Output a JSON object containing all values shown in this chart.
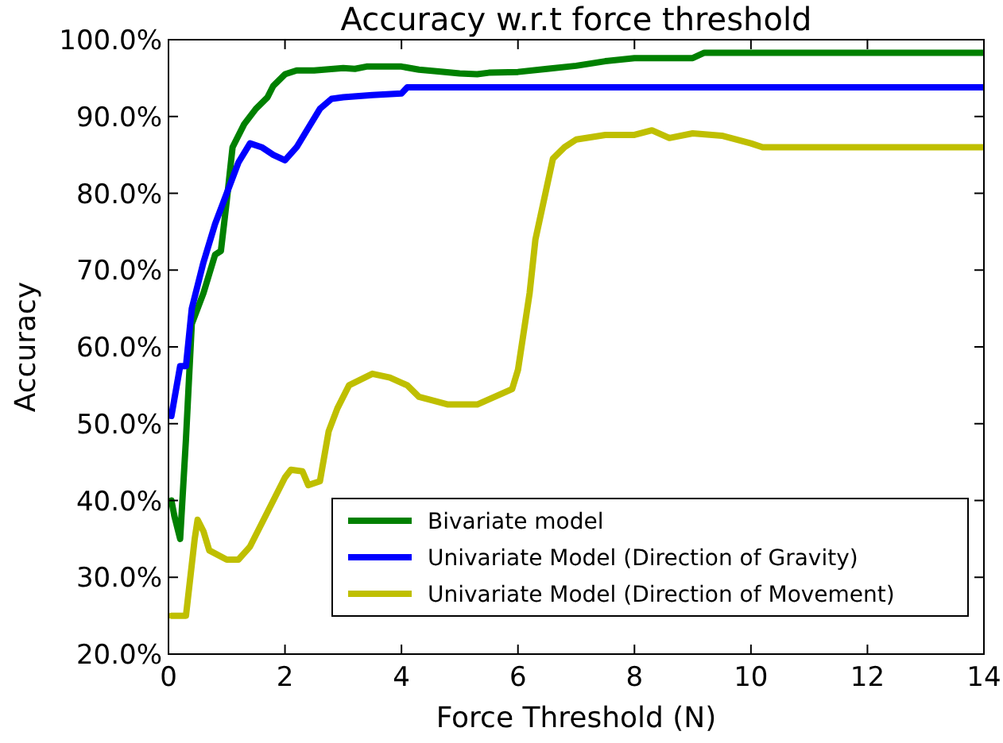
{
  "chart_data": {
    "type": "line",
    "title": "Accuracy w.r.t force threshold",
    "xlabel": "Force Threshold (N)",
    "ylabel": "Accuracy",
    "xlim": [
      0,
      14
    ],
    "xticks": [
      0,
      2,
      4,
      6,
      8,
      10,
      12,
      14
    ],
    "ylim": [
      20,
      100
    ],
    "yticks": [
      {
        "value": 20,
        "label": "20.0%"
      },
      {
        "value": 30,
        "label": "30.0%"
      },
      {
        "value": 40,
        "label": "40.0%"
      },
      {
        "value": 50,
        "label": "50.0%"
      },
      {
        "value": 60,
        "label": "60.0%"
      },
      {
        "value": 70,
        "label": "70.0%"
      },
      {
        "value": 80,
        "label": "80.0%"
      },
      {
        "value": 90,
        "label": "90.0%"
      },
      {
        "value": 100,
        "label": "100.0%"
      }
    ],
    "grid": false,
    "legend": "bottom right",
    "marker": "none",
    "line_style": "solid",
    "series": [
      {
        "name": "Bivariate model",
        "color": "#008000",
        "x": [
          0.05,
          0.1,
          0.2,
          0.3,
          0.4,
          0.6,
          0.8,
          0.9,
          1.0,
          1.1,
          1.3,
          1.5,
          1.7,
          1.8,
          2.0,
          2.2,
          2.5,
          3.0,
          3.2,
          3.4,
          4.0,
          4.3,
          4.6,
          5.0,
          5.3,
          5.5,
          6.0,
          6.5,
          7.0,
          7.5,
          8.0,
          9.0,
          9.2,
          14
        ],
        "values": [
          40,
          38,
          35,
          48,
          63,
          67,
          72,
          72.5,
          79,
          86,
          89,
          91,
          92.5,
          94,
          95.5,
          96,
          96,
          96.3,
          96.2,
          96.5,
          96.5,
          96.1,
          95.9,
          95.6,
          95.5,
          95.7,
          95.8,
          96.2,
          96.6,
          97.2,
          97.6,
          97.6,
          98.3,
          98.3
        ]
      },
      {
        "name": "Univariate Model (Direction of Gravity)",
        "color": "#0000ff",
        "x": [
          0.05,
          0.2,
          0.3,
          0.4,
          0.6,
          0.8,
          1.0,
          1.2,
          1.4,
          1.6,
          1.8,
          2.0,
          2.2,
          2.4,
          2.6,
          2.8,
          3.0,
          3.5,
          4.0,
          4.1,
          14
        ],
        "values": [
          51,
          57.5,
          57.5,
          65,
          71,
          76,
          80,
          84,
          86.5,
          86,
          85,
          84.3,
          86,
          88.5,
          91,
          92.3,
          92.5,
          92.8,
          93,
          93.8,
          93.8
        ]
      },
      {
        "name": "Univariate Model (Direction of Movement)",
        "color": "#bfbf00",
        "x": [
          0.05,
          0.3,
          0.45,
          0.5,
          0.6,
          0.7,
          1.0,
          1.2,
          1.4,
          1.6,
          1.8,
          2.0,
          2.1,
          2.3,
          2.4,
          2.6,
          2.75,
          2.9,
          3.1,
          3.5,
          3.8,
          4.1,
          4.3,
          4.8,
          5.3,
          5.6,
          5.9,
          6.0,
          6.2,
          6.3,
          6.6,
          6.8,
          7.0,
          7.5,
          8.0,
          8.3,
          8.6,
          9.0,
          9.5,
          10.0,
          10.2,
          14
        ],
        "values": [
          25,
          25,
          35,
          37.5,
          36,
          33.5,
          32.3,
          32.3,
          34,
          37,
          40,
          43,
          44,
          43.8,
          42,
          42.5,
          49,
          52,
          55,
          56.5,
          56,
          55,
          53.5,
          52.5,
          52.5,
          53.5,
          54.5,
          57,
          67,
          74,
          84.5,
          86,
          87,
          87.6,
          87.6,
          88.2,
          87.2,
          87.8,
          87.5,
          86.5,
          86,
          86
        ]
      }
    ]
  }
}
